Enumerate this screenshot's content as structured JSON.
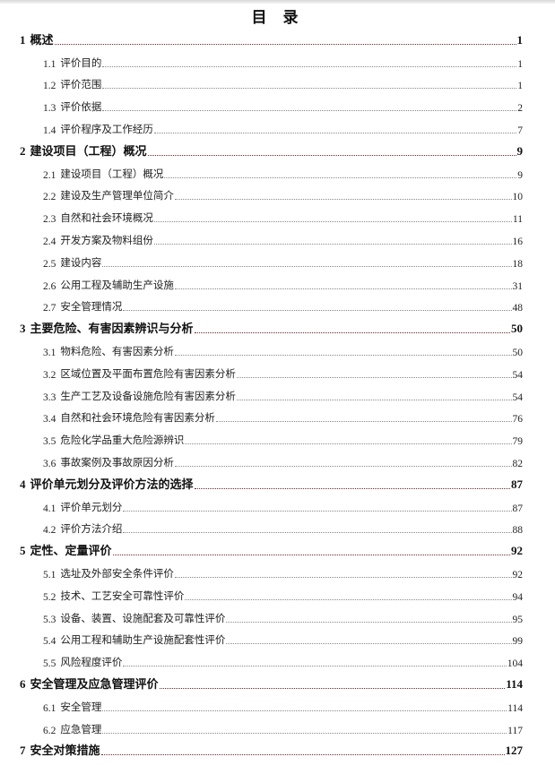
{
  "title": "目 录",
  "entries": [
    {
      "level": 1,
      "num": "1",
      "text": "概述",
      "page": "1"
    },
    {
      "level": 2,
      "num": "1.1",
      "text": "评价目的",
      "page": "1"
    },
    {
      "level": 2,
      "num": "1.2",
      "text": "评价范围",
      "page": "1"
    },
    {
      "level": 2,
      "num": "1.3",
      "text": "评价依据",
      "page": "2"
    },
    {
      "level": 2,
      "num": "1.4",
      "text": "评价程序及工作经历",
      "page": "7"
    },
    {
      "level": 1,
      "num": "2",
      "text": "建设项目（工程）概况",
      "page": "9"
    },
    {
      "level": 2,
      "num": "2.1",
      "text": "建设项目（工程）概况",
      "page": "9"
    },
    {
      "level": 2,
      "num": "2.2",
      "text": "建设及生产管理单位简介",
      "page": "10"
    },
    {
      "level": 2,
      "num": "2.3",
      "text": "自然和社会环境概况",
      "page": "11"
    },
    {
      "level": 2,
      "num": "2.4",
      "text": "开发方案及物料组份",
      "page": "16"
    },
    {
      "level": 2,
      "num": "2.5",
      "text": "建设内容",
      "page": "18"
    },
    {
      "level": 2,
      "num": "2.6",
      "text": "公用工程及辅助生产设施",
      "page": "31"
    },
    {
      "level": 2,
      "num": "2.7",
      "text": "安全管理情况",
      "page": "48"
    },
    {
      "level": 1,
      "num": "3",
      "text": "主要危险、有害因素辨识与分析",
      "page": "50"
    },
    {
      "level": 2,
      "num": "3.1",
      "text": "物料危险、有害因素分析",
      "page": "50"
    },
    {
      "level": 2,
      "num": "3.2",
      "text": "区域位置及平面布置危险有害因素分析",
      "page": "54"
    },
    {
      "level": 2,
      "num": "3.3",
      "text": "生产工艺及设备设施危险有害因素分析",
      "page": "54"
    },
    {
      "level": 2,
      "num": "3.4",
      "text": "自然和社会环境危险有害因素分析",
      "page": "76"
    },
    {
      "level": 2,
      "num": "3.5",
      "text": "危险化学品重大危险源辨识",
      "page": "79"
    },
    {
      "level": 2,
      "num": "3.6",
      "text": "事故案例及事故原因分析",
      "page": "82"
    },
    {
      "level": 1,
      "num": "4",
      "text": "评价单元划分及评价方法的选择",
      "page": "87"
    },
    {
      "level": 2,
      "num": "4.1",
      "text": "评价单元划分",
      "page": "87"
    },
    {
      "level": 2,
      "num": "4.2",
      "text": "评价方法介绍",
      "page": "88"
    },
    {
      "level": 1,
      "num": "5",
      "text": "定性、定量评价",
      "page": "92"
    },
    {
      "level": 2,
      "num": "5.1",
      "text": "选址及外部安全条件评价",
      "page": "92"
    },
    {
      "level": 2,
      "num": "5.2",
      "text": "技术、工艺安全可靠性评价",
      "page": "94"
    },
    {
      "level": 2,
      "num": "5.3",
      "text": "设备、装置、设施配套及可靠性评价",
      "page": "95"
    },
    {
      "level": 2,
      "num": "5.4",
      "text": "公用工程和辅助生产设施配套性评价",
      "page": "99"
    },
    {
      "level": 2,
      "num": "5.5",
      "text": "风险程度评价",
      "page": "104"
    },
    {
      "level": 1,
      "num": "6",
      "text": "安全管理及应急管理评价",
      "page": "114"
    },
    {
      "level": 2,
      "num": "6.1",
      "text": "安全管理",
      "page": "114"
    },
    {
      "level": 2,
      "num": "6.2",
      "text": "应急管理",
      "page": "117"
    },
    {
      "level": 1,
      "num": "7",
      "text": "安全对策措施",
      "page": "127"
    }
  ]
}
